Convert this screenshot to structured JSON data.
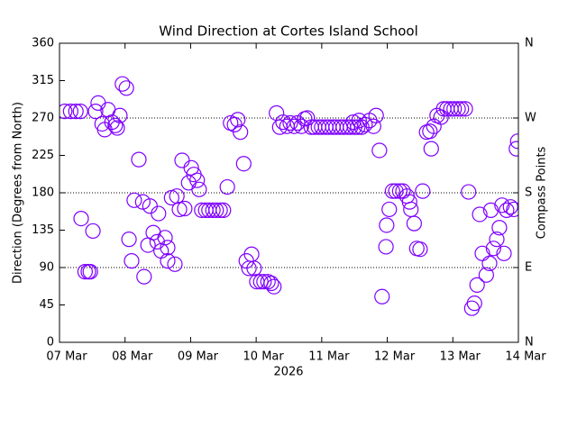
{
  "chart_data": {
    "type": "scatter",
    "title": "Wind Direction at Cortes Island School",
    "xlabel": "2026",
    "ylabel": "Direction (Degrees from North)",
    "y2label": "Compass Points",
    "color": "#7f00ff",
    "xlim": [
      0,
      7
    ],
    "xticks": [
      {
        "value": 0,
        "label": "07 Mar"
      },
      {
        "value": 1,
        "label": "08 Mar"
      },
      {
        "value": 2,
        "label": "09 Mar"
      },
      {
        "value": 3,
        "label": "10 Mar"
      },
      {
        "value": 4,
        "label": "11 Mar"
      },
      {
        "value": 5,
        "label": "12 Mar"
      },
      {
        "value": 6,
        "label": "13 Mar"
      },
      {
        "value": 7,
        "label": "14 Mar"
      }
    ],
    "ylim": [
      0,
      360
    ],
    "yticks": [
      0,
      45,
      90,
      135,
      180,
      225,
      270,
      315,
      360
    ],
    "y2lim": [
      0,
      360
    ],
    "y2ticks": [
      {
        "value": 0,
        "label": "N"
      },
      {
        "value": 90,
        "label": "E"
      },
      {
        "value": 180,
        "label": "S"
      },
      {
        "value": 270,
        "label": "W"
      },
      {
        "value": 360,
        "label": "N"
      }
    ],
    "grid": true,
    "x": [
      0.08,
      0.17,
      0.25,
      0.32,
      0.33,
      0.39,
      0.44,
      0.47,
      0.51,
      0.55,
      0.59,
      0.65,
      0.69,
      0.74,
      0.8,
      0.85,
      0.88,
      0.92,
      0.96,
      1.02,
      1.06,
      1.1,
      1.14,
      1.21,
      1.27,
      1.29,
      1.35,
      1.38,
      1.43,
      1.49,
      1.51,
      1.55,
      1.61,
      1.65,
      1.65,
      1.71,
      1.76,
      1.79,
      1.83,
      1.87,
      1.91,
      1.97,
      2.01,
      2.05,
      2.1,
      2.13,
      2.17,
      2.23,
      2.28,
      2.34,
      2.39,
      2.45,
      2.5,
      2.56,
      2.61,
      2.67,
      2.72,
      2.76,
      2.81,
      2.85,
      2.89,
      2.93,
      2.97,
      3.01,
      3.07,
      3.12,
      3.18,
      3.23,
      3.27,
      3.31,
      3.36,
      3.41,
      3.47,
      3.52,
      3.58,
      3.63,
      3.69,
      3.74,
      3.78,
      3.84,
      3.89,
      3.95,
      4.0,
      4.06,
      4.11,
      4.17,
      4.22,
      4.28,
      4.33,
      4.39,
      4.44,
      4.48,
      4.5,
      4.55,
      4.57,
      4.61,
      4.66,
      4.73,
      4.79,
      4.83,
      4.88,
      4.92,
      4.98,
      4.99,
      5.03,
      5.08,
      5.13,
      5.19,
      5.24,
      5.3,
      5.34,
      5.36,
      5.41,
      5.45,
      5.5,
      5.54,
      5.6,
      5.65,
      5.67,
      5.71,
      5.76,
      5.82,
      5.86,
      5.91,
      5.97,
      6.02,
      6.08,
      6.13,
      6.19,
      6.24,
      6.29,
      6.33,
      6.37,
      6.41,
      6.45,
      6.51,
      6.56,
      6.58,
      6.62,
      6.67,
      6.71,
      6.75,
      6.78,
      6.82,
      6.88,
      6.93,
      6.97,
      6.99
    ],
    "y": [
      278,
      278,
      278,
      278,
      149,
      85,
      85,
      85,
      134,
      278,
      288,
      263,
      256,
      280,
      265,
      261,
      258,
      273,
      311,
      306,
      124,
      98,
      171,
      220,
      169,
      79,
      117,
      164,
      132,
      121,
      155,
      110,
      126,
      114,
      98,
      174,
      94,
      176,
      160,
      219,
      161,
      192,
      210,
      202,
      195,
      184,
      159,
      159,
      159,
      159,
      159,
      159,
      159,
      187,
      264,
      262,
      268,
      253,
      215,
      98,
      89,
      106,
      89,
      73,
      73,
      73,
      73,
      71,
      67,
      276,
      259,
      265,
      260,
      264,
      260,
      264,
      260,
      269,
      270,
      259,
      259,
      259,
      259,
      259,
      259,
      259,
      259,
      259,
      259,
      259,
      259,
      265,
      259,
      259,
      267,
      259,
      262,
      267,
      260,
      273,
      231,
      55,
      115,
      141,
      160,
      182,
      182,
      182,
      182,
      176,
      169,
      160,
      143,
      113,
      112,
      182,
      253,
      254,
      233,
      260,
      273,
      271,
      281,
      281,
      281,
      281,
      281,
      281,
      281,
      181,
      41,
      47,
      69,
      154,
      107,
      81,
      95,
      159,
      113,
      124,
      138,
      165,
      107,
      159,
      163,
      160,
      233,
      242
    ]
  }
}
